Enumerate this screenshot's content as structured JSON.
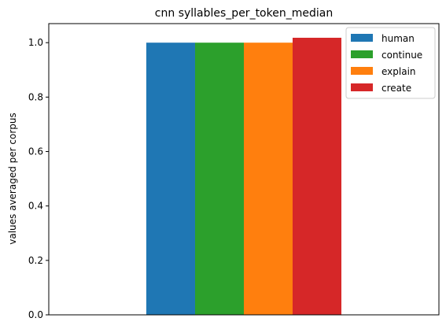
{
  "chart_data": {
    "type": "bar",
    "title": "cnn syllables_per_token_median",
    "xlabel": "",
    "ylabel": "values averaged per corpus",
    "categories": [
      ""
    ],
    "ylim": [
      0,
      1.07
    ],
    "yticks": [
      0.0,
      0.2,
      0.4,
      0.6,
      0.8,
      1.0
    ],
    "ytick_labels": [
      "0.0",
      "0.2",
      "0.4",
      "0.6",
      "0.8",
      "1.0"
    ],
    "grid": false,
    "legend_position": "top-right",
    "series": [
      {
        "name": "human",
        "values": [
          1.0
        ],
        "color": "#1f77b4"
      },
      {
        "name": "continue",
        "values": [
          1.0
        ],
        "color": "#2ca02c"
      },
      {
        "name": "explain",
        "values": [
          1.0
        ],
        "color": "#ff7f0e"
      },
      {
        "name": "create",
        "values": [
          1.018
        ],
        "color": "#d62728"
      }
    ]
  }
}
